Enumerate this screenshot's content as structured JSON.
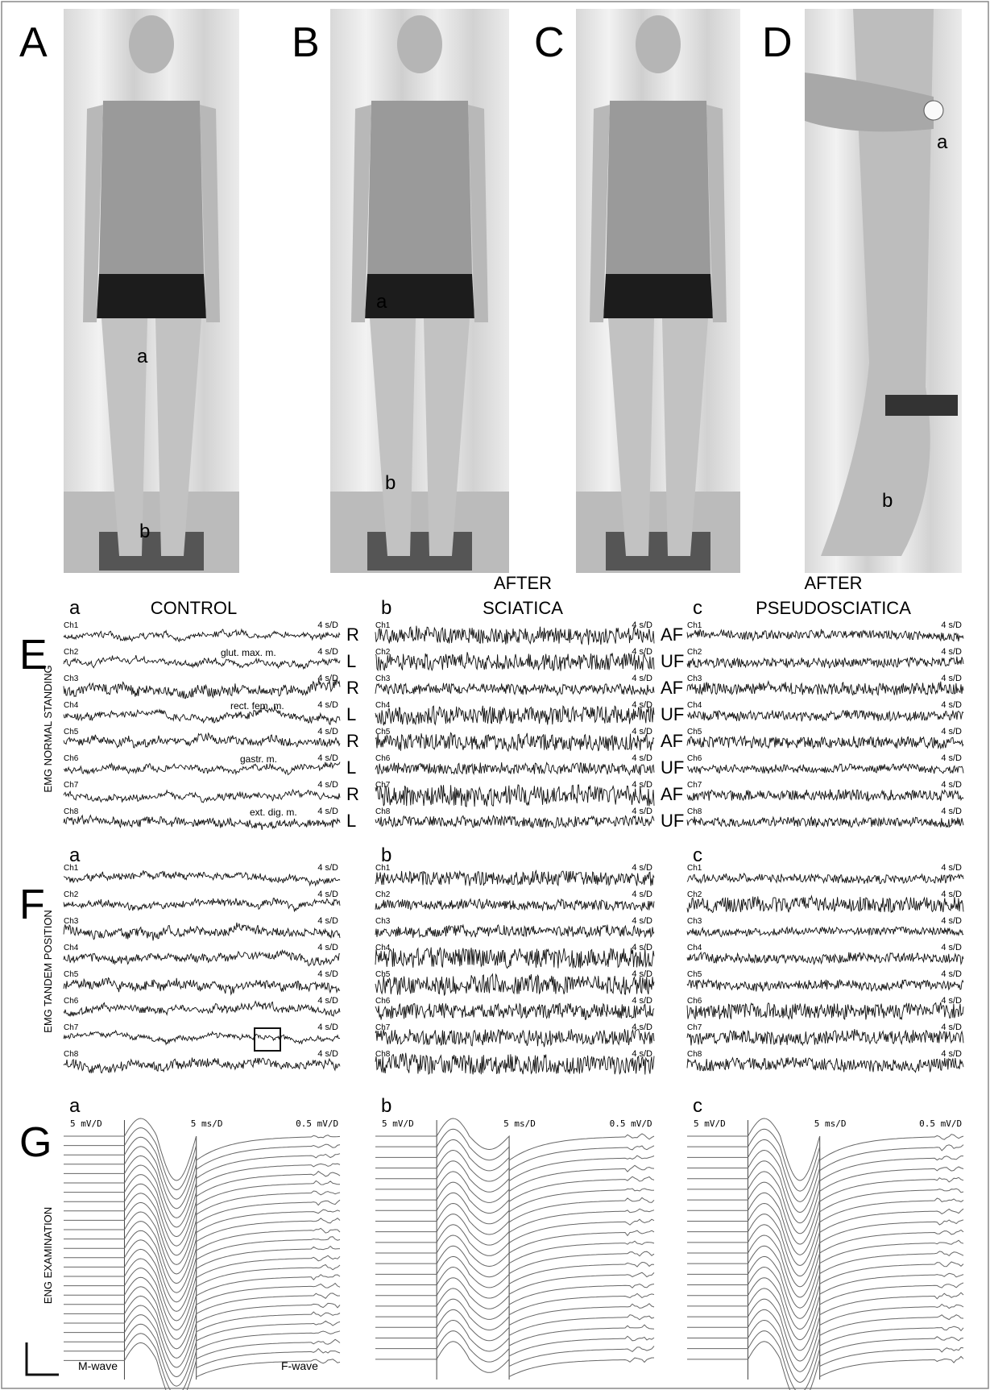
{
  "photos": [
    {
      "letter": "A",
      "labels": [
        "a",
        "b"
      ]
    },
    {
      "letter": "B",
      "labels": [
        "a",
        "b"
      ]
    },
    {
      "letter": "C"
    },
    {
      "letter": "D",
      "labels": [
        "a",
        "b"
      ]
    }
  ],
  "emg_standing": {
    "letter": "E",
    "side_title": "EMG NORMAL STANDING",
    "channels": [
      "Ch1",
      "Ch2",
      "Ch3",
      "Ch4",
      "Ch5",
      "Ch6",
      "Ch7",
      "Ch8"
    ],
    "scale": "4 s/D",
    "columns": [
      {
        "letter": "a",
        "heading": [
          "CONTROL"
        ],
        "muscles": [
          "glut. max. m.",
          "rect. fem. m.",
          "gastr. m.",
          "ext. dig. m."
        ],
        "sides": [
          "R",
          "L",
          "R",
          "L",
          "R",
          "L",
          "R",
          "L"
        ]
      },
      {
        "letter": "b",
        "heading": [
          "AFTER",
          "SCIATICA"
        ],
        "sides": [
          "AF",
          "UF",
          "AF",
          "UF",
          "AF",
          "UF",
          "AF",
          "UF"
        ]
      },
      {
        "letter": "c",
        "heading": [
          "AFTER",
          "PSEUDOSCIATICA"
        ]
      }
    ]
  },
  "emg_tandem": {
    "letter": "F",
    "side_title": "EMG TANDEM POSITION",
    "channels": [
      "Ch1",
      "Ch2",
      "Ch3",
      "Ch4",
      "Ch5",
      "Ch6",
      "Ch7",
      "Ch8"
    ],
    "scale": "4 s/D",
    "columns": [
      {
        "letter": "a"
      },
      {
        "letter": "b"
      },
      {
        "letter": "c"
      }
    ]
  },
  "eng": {
    "letter": "G",
    "side_title": "ENG EXAMINATION",
    "amplitude_scale": "5 mV/D",
    "time_scale": "5 ms/D",
    "f_scale": "0.5 mV/D",
    "m_wave": "M-wave",
    "f_wave": "F-wave",
    "columns": [
      {
        "letter": "a"
      },
      {
        "letter": "b"
      },
      {
        "letter": "c"
      }
    ]
  }
}
